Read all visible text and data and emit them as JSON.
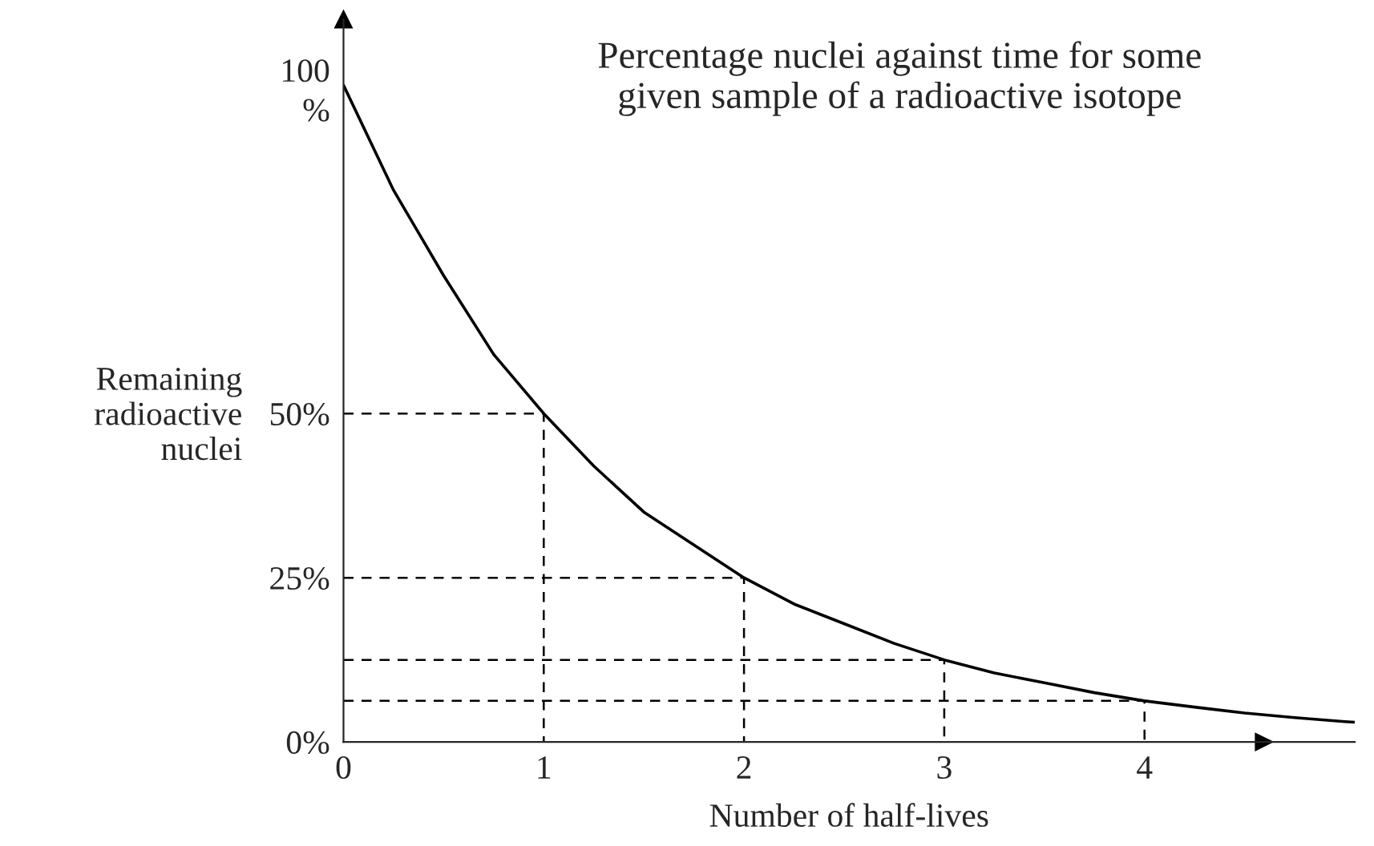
{
  "chart_data": {
    "type": "line",
    "title": "Percentage nuclei against time for some\ngiven sample of a radioactive isotope",
    "xlabel": "Number of half-lives",
    "ylabel": "Remaining\nradioactive\nnuclei",
    "series": [
      {
        "color": "#000000",
        "line_style": "solid",
        "x": [
          0,
          0.25,
          0.5,
          0.75,
          1,
          1.25,
          1.5,
          1.75,
          2,
          2.25,
          2.5,
          2.75,
          3,
          3.25,
          3.5,
          3.75,
          4,
          4.25,
          4.5,
          4.75,
          5,
          5.05
        ],
        "values": [
          100,
          84,
          71,
          59,
          50,
          42,
          35,
          30,
          25,
          21,
          18,
          15,
          12.5,
          10.5,
          9,
          7.5,
          6.25,
          5.3,
          4.4,
          3.7,
          3.1,
          3
        ]
      },
      {
        "color": "#000000",
        "line_style": "dashed",
        "x": [
          0,
          1,
          1
        ],
        "values": [
          50,
          50,
          0
        ]
      },
      {
        "color": "#000000",
        "line_style": "dashed",
        "x": [
          0,
          2,
          2
        ],
        "values": [
          25,
          25,
          0
        ]
      },
      {
        "color": "#000000",
        "line_style": "dashed",
        "x": [
          0,
          3,
          3
        ],
        "values": [
          12.5,
          12.5,
          0
        ]
      },
      {
        "color": "#000000",
        "line_style": "dashed",
        "x": [
          0,
          4,
          4
        ],
        "values": [
          6.25,
          6.25,
          0
        ]
      }
    ],
    "xlim": [
      0,
      5.05
    ],
    "ylim": [
      0,
      110
    ],
    "xticks": [
      0,
      1,
      2,
      3,
      4
    ],
    "yticks": [
      {
        "value": 0,
        "label": "0%"
      },
      {
        "value": 25,
        "label": "25%"
      },
      {
        "value": 50,
        "label": "50%"
      },
      {
        "value": 100,
        "label": "100\n%"
      }
    ],
    "grid": false,
    "legend": false,
    "marker": "none"
  }
}
